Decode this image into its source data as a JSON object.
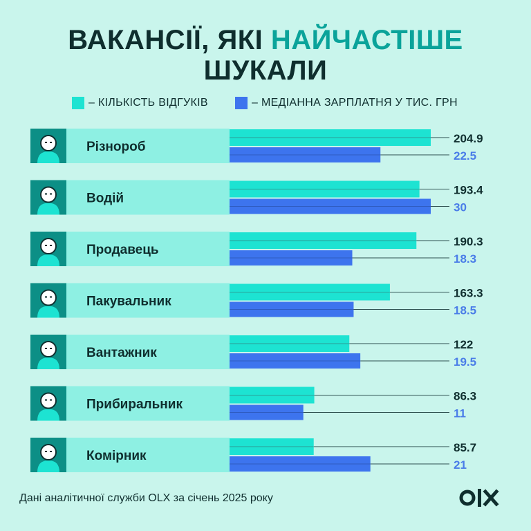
{
  "title": {
    "line1_prefix": "ВАКАНСІЇ, ЯКІ ",
    "line1_highlight": "НАЙЧАСТІШЕ",
    "line2": "ШУКАЛИ"
  },
  "legend": {
    "count_label": "– КІЛЬКІСТЬ ВІДГУКІВ",
    "salary_label": "– МЕДІАННА ЗАРПЛАТНЯ У ТИС. ГРН"
  },
  "colors": {
    "background": "#c9f5ec",
    "count": "#1de3d2",
    "salary": "#3d74ee",
    "label_band": "#8ef0e3",
    "avatar_bg": "#0c8f86",
    "text": "#0f2e2e",
    "salary_text": "#4a7de8"
  },
  "chart_data": {
    "type": "bar",
    "categories": [
      "Різнороб",
      "Водій",
      "Продавець",
      "Пакувальник",
      "Вантажник",
      "Прибиральник",
      "Комірник"
    ],
    "series": [
      {
        "name": "КІЛЬКІСТЬ ВІДГУКІВ",
        "values": [
          204.9,
          193.4,
          190.3,
          163.3,
          122,
          86.3,
          85.7
        ],
        "labels": [
          "204.9",
          "193.4",
          "190.3",
          "163.3",
          "122",
          "86.3",
          "85.7"
        ]
      },
      {
        "name": "МЕДІАННА ЗАРПЛАТНЯ У ТИС. ГРН",
        "values": [
          22.5,
          30,
          18.3,
          18.5,
          19.5,
          11,
          21
        ],
        "labels": [
          "22.5",
          "30",
          "18.3",
          "18.5",
          "19.5",
          "11",
          "21"
        ]
      }
    ],
    "orientation": "horizontal",
    "grid": false,
    "legend_position": "top"
  },
  "avatars": [
    "worker-avatar-icon",
    "driver-avatar-icon",
    "seller-avatar-icon",
    "packer-avatar-icon",
    "loader-avatar-icon",
    "cleaner-avatar-icon",
    "storekeeper-avatar-icon"
  ],
  "footer": "Дані аналітичної служби OLX за січень 2025 року",
  "logo": "OLX"
}
